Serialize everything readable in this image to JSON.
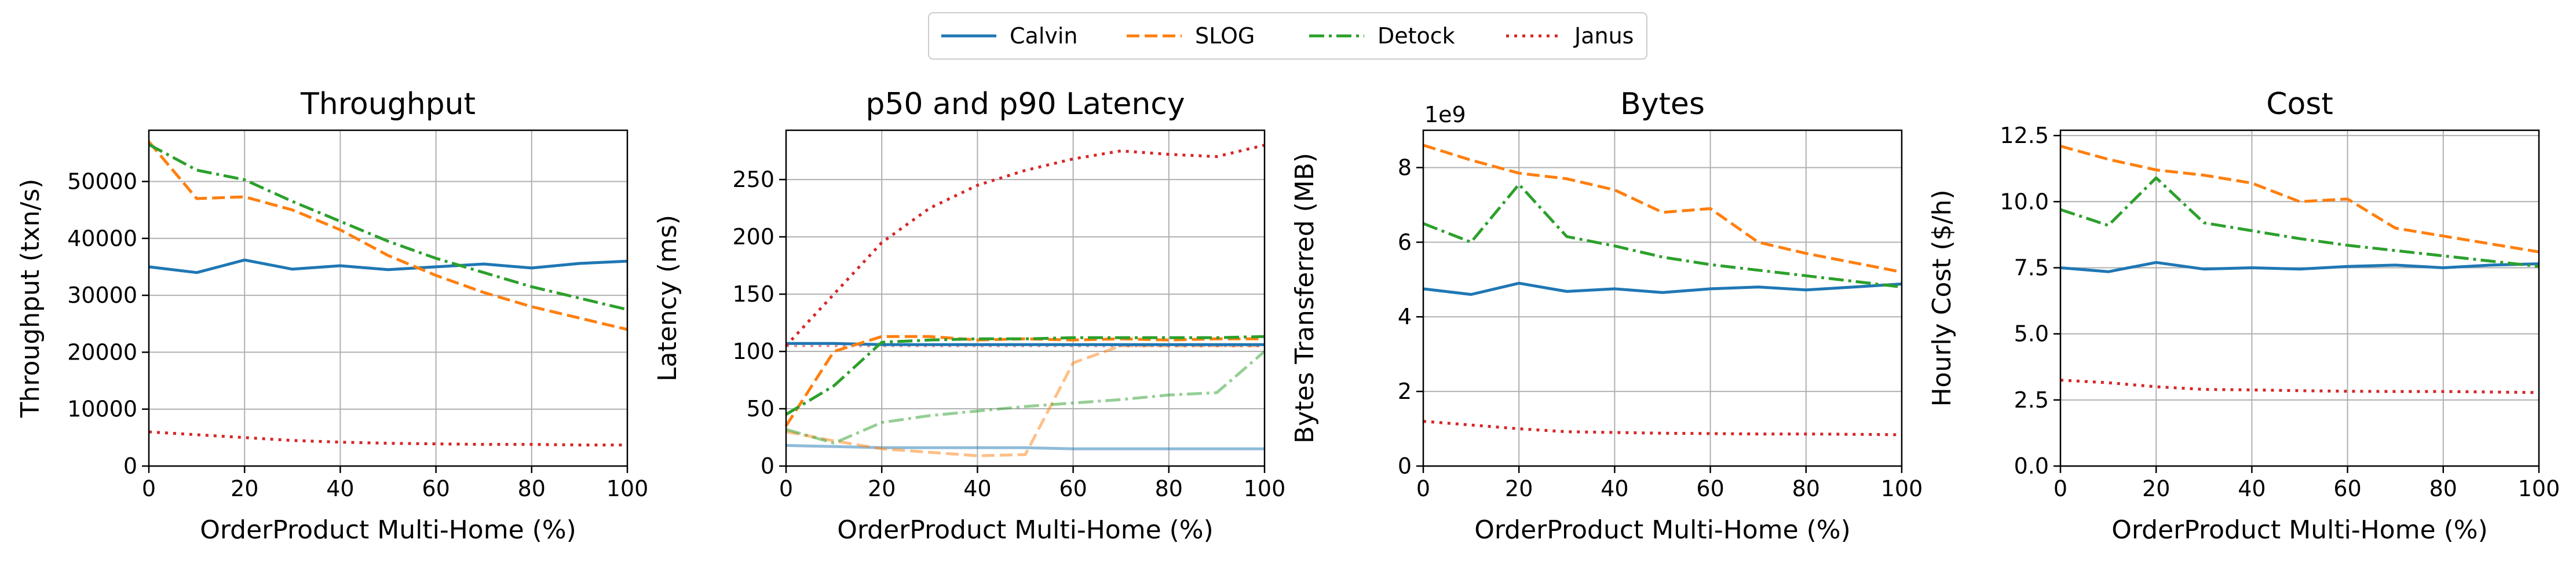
{
  "legend": [
    {
      "name": "Calvin",
      "color": "#1f77b4",
      "dash": "solid"
    },
    {
      "name": "SLOG",
      "color": "#ff7f0e",
      "dash": "dashed"
    },
    {
      "name": "Detock",
      "color": "#2ca02c",
      "dash": "dashdot"
    },
    {
      "name": "Janus",
      "color": "#d62728",
      "dash": "dotted"
    }
  ],
  "chart_data": [
    {
      "type": "line",
      "title": "Throughput",
      "xlabel": "OrderProduct Multi-Home (%)",
      "ylabel": "Throughput (txn/s)",
      "xlim": [
        0,
        100
      ],
      "ylim": [
        0,
        59000
      ],
      "xticks": [
        0,
        20,
        40,
        60,
        80,
        100
      ],
      "yticks": [
        0,
        10000,
        20000,
        30000,
        40000,
        50000
      ],
      "ytick_labels": [
        "0",
        "10000",
        "20000",
        "30000",
        "40000",
        "50000"
      ],
      "offset_text": "",
      "grid": true,
      "x": [
        0,
        10,
        20,
        30,
        40,
        50,
        60,
        70,
        80,
        90,
        100
      ],
      "series": [
        {
          "name": "Calvin",
          "color": "#1f77b4",
          "dash": "solid",
          "alpha": 1,
          "values": [
            35000,
            34000,
            36200,
            34600,
            35200,
            34500,
            35000,
            35500,
            34800,
            35600,
            36000
          ]
        },
        {
          "name": "SLOG",
          "color": "#ff7f0e",
          "dash": "dashed",
          "alpha": 1,
          "values": [
            57000,
            47000,
            47300,
            45000,
            41500,
            37000,
            33500,
            30500,
            28000,
            26000,
            24000
          ]
        },
        {
          "name": "Detock",
          "color": "#2ca02c",
          "dash": "dashdot",
          "alpha": 1,
          "values": [
            56500,
            52000,
            50300,
            46500,
            43000,
            39500,
            36500,
            34000,
            31500,
            29500,
            27500
          ]
        },
        {
          "name": "Janus",
          "color": "#d62728",
          "dash": "dotted",
          "alpha": 1,
          "values": [
            6000,
            5500,
            5000,
            4500,
            4200,
            4000,
            3900,
            3800,
            3800,
            3700,
            3700
          ]
        }
      ]
    },
    {
      "type": "line",
      "title": "p50 and p90 Latency",
      "xlabel": "OrderProduct Multi-Home (%)",
      "ylabel": "Latency (ms)",
      "xlim": [
        0,
        100
      ],
      "ylim": [
        0,
        293
      ],
      "xticks": [
        0,
        20,
        40,
        60,
        80,
        100
      ],
      "yticks": [
        0,
        50,
        100,
        150,
        200,
        250
      ],
      "ytick_labels": [
        "0",
        "50",
        "100",
        "150",
        "200",
        "250"
      ],
      "offset_text": "",
      "grid": true,
      "x": [
        0,
        10,
        20,
        30,
        40,
        50,
        60,
        70,
        80,
        90,
        100
      ],
      "series": [
        {
          "name": "Calvin",
          "color": "#1f77b4",
          "dash": "solid",
          "alpha": 0.5,
          "values": [
            18,
            17,
            16,
            16,
            16,
            16,
            15,
            15,
            15,
            15,
            15
          ]
        },
        {
          "name": "SLOG",
          "color": "#ff7f0e",
          "dash": "dashed",
          "alpha": 0.5,
          "values": [
            30,
            22,
            15,
            12,
            9,
            10,
            90,
            105,
            105,
            105,
            105
          ]
        },
        {
          "name": "Detock",
          "color": "#2ca02c",
          "dash": "dashdot",
          "alpha": 0.5,
          "values": [
            32,
            20,
            38,
            44,
            48,
            52,
            55,
            58,
            62,
            64,
            100
          ]
        },
        {
          "name": "Janus",
          "color": "#d62728",
          "dash": "dotted",
          "alpha": 0.5,
          "values": [
            105,
            105,
            105,
            105,
            105,
            105,
            105,
            105,
            105,
            105,
            105
          ]
        },
        {
          "name": "Calvin",
          "color": "#1f77b4",
          "dash": "solid",
          "alpha": 1,
          "values": [
            107,
            107,
            106,
            106,
            106,
            106,
            106,
            106,
            106,
            106,
            106
          ]
        },
        {
          "name": "SLOG",
          "color": "#ff7f0e",
          "dash": "dashed",
          "alpha": 1,
          "values": [
            35,
            100,
            113,
            113,
            110,
            111,
            110,
            111,
            110,
            111,
            111
          ]
        },
        {
          "name": "Detock",
          "color": "#2ca02c",
          "dash": "dashdot",
          "alpha": 1,
          "values": [
            45,
            70,
            108,
            110,
            111,
            111,
            112,
            112,
            112,
            112,
            113
          ]
        },
        {
          "name": "Janus",
          "color": "#d62728",
          "dash": "dotted",
          "alpha": 1,
          "values": [
            105,
            150,
            195,
            225,
            245,
            258,
            268,
            275,
            272,
            270,
            280
          ]
        }
      ]
    },
    {
      "type": "line",
      "title": "Bytes",
      "xlabel": "OrderProduct Multi-Home (%)",
      "ylabel": "Bytes Transferred (MB)",
      "xlim": [
        0,
        100
      ],
      "ylim": [
        0,
        9.0
      ],
      "xticks": [
        0,
        20,
        40,
        60,
        80,
        100
      ],
      "yticks": [
        0,
        2,
        4,
        6,
        8
      ],
      "ytick_labels": [
        "0",
        "2",
        "4",
        "6",
        "8"
      ],
      "offset_text": "1e9",
      "grid": true,
      "x": [
        0,
        10,
        20,
        30,
        40,
        50,
        60,
        70,
        80,
        90,
        100
      ],
      "series": [
        {
          "name": "Calvin",
          "color": "#1f77b4",
          "dash": "solid",
          "alpha": 1,
          "values": [
            4.75,
            4.6,
            4.9,
            4.68,
            4.75,
            4.65,
            4.75,
            4.8,
            4.72,
            4.8,
            4.88
          ]
        },
        {
          "name": "SLOG",
          "color": "#ff7f0e",
          "dash": "dashed",
          "alpha": 1,
          "values": [
            8.6,
            8.2,
            7.85,
            7.7,
            7.4,
            6.8,
            6.9,
            6.0,
            5.7,
            5.45,
            5.2
          ]
        },
        {
          "name": "Detock",
          "color": "#2ca02c",
          "dash": "dashdot",
          "alpha": 1,
          "values": [
            6.5,
            6.0,
            7.55,
            6.15,
            5.9,
            5.6,
            5.4,
            5.25,
            5.1,
            4.95,
            4.8
          ]
        },
        {
          "name": "Janus",
          "color": "#d62728",
          "dash": "dotted",
          "alpha": 1,
          "values": [
            1.2,
            1.1,
            1.0,
            0.92,
            0.9,
            0.88,
            0.87,
            0.86,
            0.86,
            0.85,
            0.84
          ]
        }
      ]
    },
    {
      "type": "line",
      "title": "Cost",
      "xlabel": "OrderProduct Multi-Home (%)",
      "ylabel": "Hourly Cost ($/h)",
      "xlim": [
        0,
        100
      ],
      "ylim": [
        0,
        12.7
      ],
      "xticks": [
        0,
        20,
        40,
        60,
        80,
        100
      ],
      "yticks": [
        0,
        2.5,
        5.0,
        7.5,
        10.0,
        12.5
      ],
      "ytick_labels": [
        "0.0",
        "2.5",
        "5.0",
        "7.5",
        "10.0",
        "12.5"
      ],
      "offset_text": "",
      "grid": true,
      "x": [
        0,
        10,
        20,
        30,
        40,
        50,
        60,
        70,
        80,
        90,
        100
      ],
      "series": [
        {
          "name": "Calvin",
          "color": "#1f77b4",
          "dash": "solid",
          "alpha": 1,
          "values": [
            7.5,
            7.35,
            7.7,
            7.45,
            7.5,
            7.45,
            7.55,
            7.6,
            7.5,
            7.6,
            7.65
          ]
        },
        {
          "name": "SLOG",
          "color": "#ff7f0e",
          "dash": "dashed",
          "alpha": 1,
          "values": [
            12.1,
            11.6,
            11.2,
            11.0,
            10.7,
            10.0,
            10.1,
            9.0,
            8.7,
            8.4,
            8.1
          ]
        },
        {
          "name": "Detock",
          "color": "#2ca02c",
          "dash": "dashdot",
          "alpha": 1,
          "values": [
            9.7,
            9.1,
            10.9,
            9.2,
            8.9,
            8.6,
            8.35,
            8.15,
            7.95,
            7.75,
            7.55
          ]
        },
        {
          "name": "Janus",
          "color": "#d62728",
          "dash": "dotted",
          "alpha": 1,
          "values": [
            3.25,
            3.15,
            3.0,
            2.9,
            2.88,
            2.85,
            2.83,
            2.82,
            2.82,
            2.8,
            2.78
          ]
        }
      ]
    }
  ]
}
